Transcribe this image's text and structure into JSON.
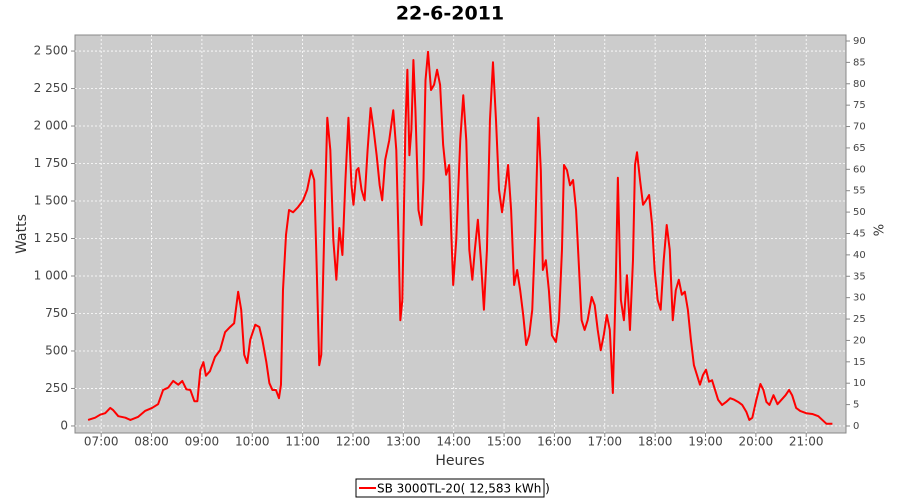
{
  "chart_data": {
    "type": "line",
    "title": "22-6-2011",
    "x_label": "Heures",
    "y_label": "Watts",
    "y2_label": "%",
    "xlim": [
      6.48,
      21.79
    ],
    "ylim": [
      -47,
      2607
    ],
    "y2lim": [
      -1.64,
      91.4
    ],
    "xticks": [
      {
        "value": 7,
        "label": "07:00"
      },
      {
        "value": 8,
        "label": "08:00"
      },
      {
        "value": 9,
        "label": "09:00"
      },
      {
        "value": 10,
        "label": "10:00"
      },
      {
        "value": 11,
        "label": "11:00"
      },
      {
        "value": 12,
        "label": "12:00"
      },
      {
        "value": 13,
        "label": "13:00"
      },
      {
        "value": 14,
        "label": "14:00"
      },
      {
        "value": 15,
        "label": "15:00"
      },
      {
        "value": 16,
        "label": "16:00"
      },
      {
        "value": 17,
        "label": "17:00"
      },
      {
        "value": 18,
        "label": "18:00"
      },
      {
        "value": 19,
        "label": "19:00"
      },
      {
        "value": 20,
        "label": "20:00"
      },
      {
        "value": 21,
        "label": "21:00"
      }
    ],
    "yticks": [
      0,
      250,
      500,
      750,
      {
        "value": 1000,
        "label": "1 000"
      },
      {
        "value": 1250,
        "label": "1 250"
      },
      {
        "value": 1500,
        "label": "1 500"
      },
      {
        "value": 1750,
        "label": "1 750"
      },
      {
        "value": 2000,
        "label": "2 000"
      },
      {
        "value": 2250,
        "label": "2 250"
      },
      {
        "value": 2500,
        "label": "2 500"
      }
    ],
    "y2ticks": [
      0,
      5,
      10,
      15,
      20,
      25,
      30,
      35,
      40,
      45,
      50,
      55,
      60,
      65,
      70,
      75,
      80,
      85,
      90
    ],
    "grid": true,
    "x": [
      6.74,
      6.88,
      6.98,
      7.08,
      7.18,
      7.24,
      7.34,
      7.48,
      7.58,
      7.73,
      7.87,
      8.01,
      8.13,
      8.23,
      8.33,
      8.43,
      8.53,
      8.61,
      8.69,
      8.77,
      8.85,
      8.91,
      8.97,
      9.03,
      9.08,
      9.16,
      9.26,
      9.36,
      9.46,
      9.56,
      9.64,
      9.72,
      9.78,
      9.84,
      9.9,
      9.96,
      10.06,
      10.14,
      10.2,
      10.28,
      10.34,
      10.4,
      10.47,
      10.53,
      10.57,
      10.61,
      10.67,
      10.73,
      10.81,
      10.91,
      11.01,
      11.09,
      11.17,
      11.23,
      11.27,
      11.33,
      11.37,
      11.43,
      11.49,
      11.55,
      11.61,
      11.67,
      11.73,
      11.79,
      11.85,
      11.91,
      11.97,
      12.01,
      12.07,
      12.11,
      12.17,
      12.23,
      12.29,
      12.35,
      12.41,
      12.47,
      12.53,
      12.58,
      12.64,
      12.72,
      12.8,
      12.86,
      12.9,
      12.94,
      12.98,
      13.04,
      13.08,
      13.12,
      13.16,
      13.2,
      13.24,
      13.3,
      13.36,
      13.4,
      13.44,
      13.49,
      13.55,
      13.61,
      13.67,
      13.73,
      13.79,
      13.85,
      13.91,
      13.95,
      13.99,
      14.05,
      14.13,
      14.19,
      14.25,
      14.31,
      14.37,
      14.42,
      14.48,
      14.54,
      14.6,
      14.66,
      14.72,
      14.78,
      14.84,
      14.9,
      14.96,
      15.02,
      15.08,
      15.14,
      15.2,
      15.26,
      15.32,
      15.38,
      15.44,
      15.5,
      15.56,
      15.62,
      15.68,
      15.73,
      15.77,
      15.83,
      15.89,
      15.95,
      16.03,
      16.09,
      16.15,
      16.19,
      16.25,
      16.31,
      16.37,
      16.43,
      16.49,
      16.54,
      16.6,
      16.66,
      16.74,
      16.8,
      16.86,
      16.92,
      16.98,
      17.04,
      17.1,
      17.16,
      17.22,
      17.26,
      17.32,
      17.38,
      17.44,
      17.5,
      17.56,
      17.6,
      17.64,
      17.7,
      17.76,
      17.82,
      17.88,
      17.94,
      17.99,
      18.05,
      18.11,
      18.17,
      18.23,
      18.29,
      18.35,
      18.41,
      18.47,
      18.53,
      18.59,
      18.65,
      18.71,
      18.77,
      18.83,
      18.89,
      18.95,
      19.01,
      19.07,
      19.13,
      19.19,
      19.25,
      19.33,
      19.41,
      19.49,
      19.57,
      19.65,
      19.73,
      19.81,
      19.87,
      19.93,
      20.01,
      20.09,
      20.15,
      20.21,
      20.27,
      20.35,
      20.43,
      20.51,
      20.59,
      20.66,
      20.72,
      20.8,
      20.88,
      21.0,
      21.12,
      21.24,
      21.32,
      21.4,
      21.52
    ],
    "series": [
      {
        "name": "SB 3000TL-20( 12,583 kWh  )",
        "color": "#ff0000",
        "values": [
          40,
          55,
          75,
          85,
          120,
          105,
          65,
          55,
          40,
          60,
          100,
          120,
          145,
          240,
          255,
          300,
          275,
          300,
          245,
          240,
          165,
          165,
          375,
          425,
          335,
          365,
          460,
          505,
          625,
          660,
          685,
          895,
          775,
          475,
          420,
          575,
          675,
          660,
          575,
          425,
          285,
          240,
          240,
          185,
          275,
          905,
          1275,
          1440,
          1425,
          1460,
          1505,
          1575,
          1705,
          1640,
          1175,
          405,
          475,
          1305,
          2055,
          1840,
          1240,
          975,
          1320,
          1140,
          1640,
          2055,
          1605,
          1475,
          1705,
          1720,
          1575,
          1505,
          1840,
          2120,
          1975,
          1805,
          1605,
          1505,
          1775,
          1905,
          2105,
          1840,
          1305,
          705,
          840,
          1975,
          2375,
          1805,
          1975,
          2440,
          2105,
          1440,
          1340,
          1640,
          2305,
          2495,
          2240,
          2275,
          2375,
          2275,
          1875,
          1675,
          1740,
          1305,
          940,
          1240,
          1905,
          2205,
          1905,
          1175,
          975,
          1175,
          1375,
          1105,
          775,
          1175,
          2040,
          2425,
          2040,
          1575,
          1425,
          1575,
          1740,
          1440,
          940,
          1040,
          905,
          740,
          540,
          605,
          775,
          1305,
          2055,
          1705,
          1040,
          1105,
          905,
          605,
          560,
          705,
          1175,
          1740,
          1705,
          1605,
          1640,
          1440,
          1040,
          705,
          640,
          705,
          860,
          805,
          640,
          505,
          605,
          740,
          640,
          220,
          975,
          1655,
          840,
          705,
          1005,
          640,
          1105,
          1740,
          1825,
          1640,
          1475,
          1505,
          1540,
          1340,
          1040,
          840,
          775,
          1105,
          1340,
          1175,
          705,
          905,
          975,
          875,
          895,
          775,
          575,
          405,
          340,
          275,
          340,
          375,
          295,
          305,
          240,
          175,
          140,
          160,
          185,
          175,
          160,
          140,
          95,
          40,
          55,
          175,
          280,
          240,
          160,
          140,
          205,
          145,
          175,
          205,
          240,
          205,
          120,
          100,
          85,
          80,
          65,
          40,
          15,
          15
        ]
      }
    ]
  }
}
